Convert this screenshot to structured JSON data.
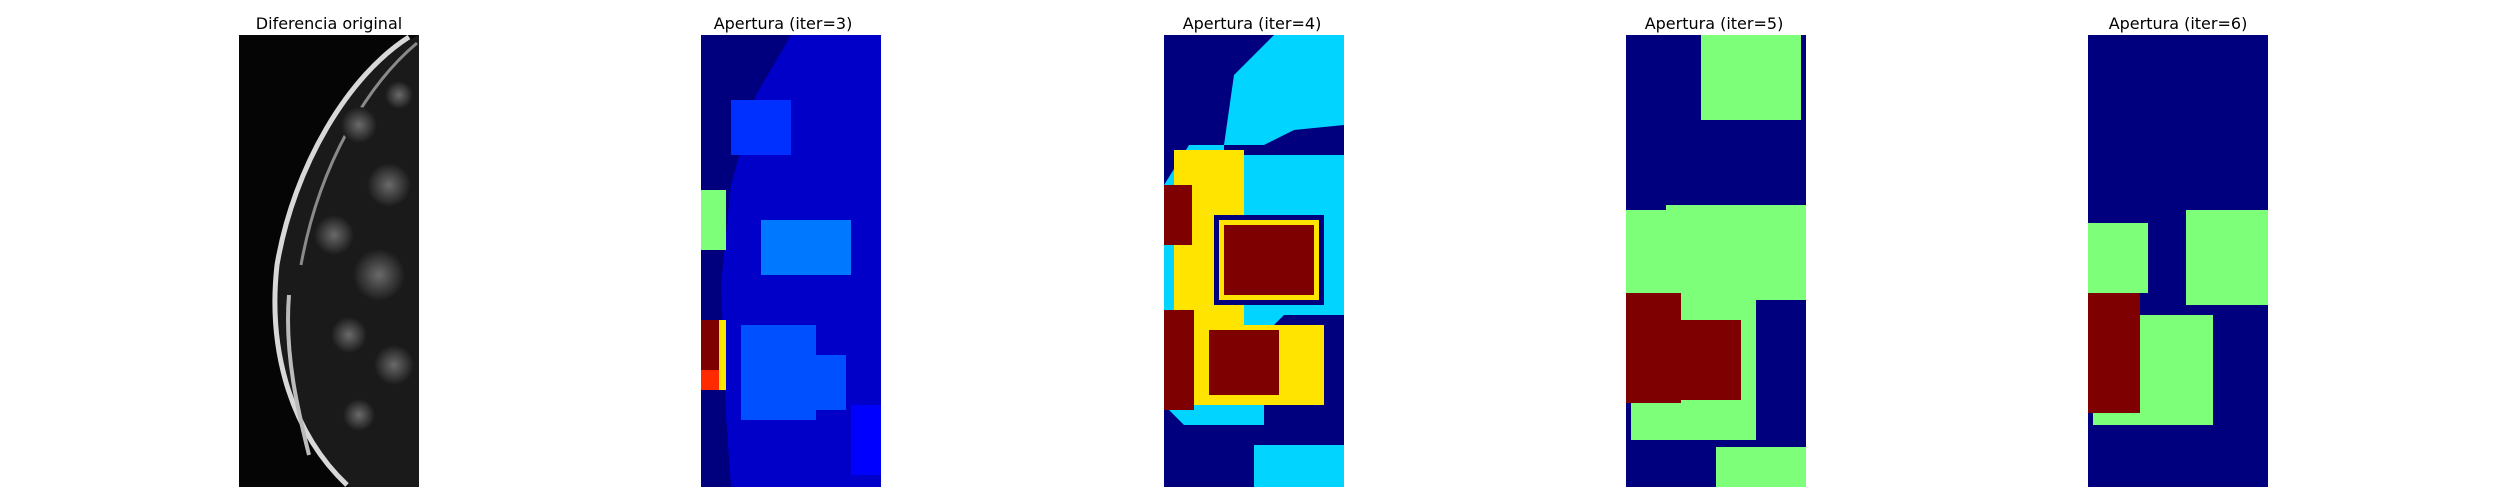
{
  "figure": {
    "panels": [
      {
        "title": "Diferencia original",
        "colormap": "gray"
      },
      {
        "title": "Apertura (iter=3)",
        "colormap": "jet"
      },
      {
        "title": "Apertura (iter=4)",
        "colormap": "jet"
      },
      {
        "title": "Apertura (iter=5)",
        "colormap": "jet"
      },
      {
        "title": "Apertura (iter=6)",
        "colormap": "jet"
      }
    ],
    "colors": {
      "background": "#ffffff",
      "jet_dark_blue": "#00007f",
      "jet_blue": "#0000ff",
      "jet_mid_blue": "#0050ff",
      "jet_cyan": "#00d4ff",
      "jet_green": "#7dff7a",
      "jet_yellow": "#ffe400",
      "jet_red": "#7f0000"
    }
  }
}
